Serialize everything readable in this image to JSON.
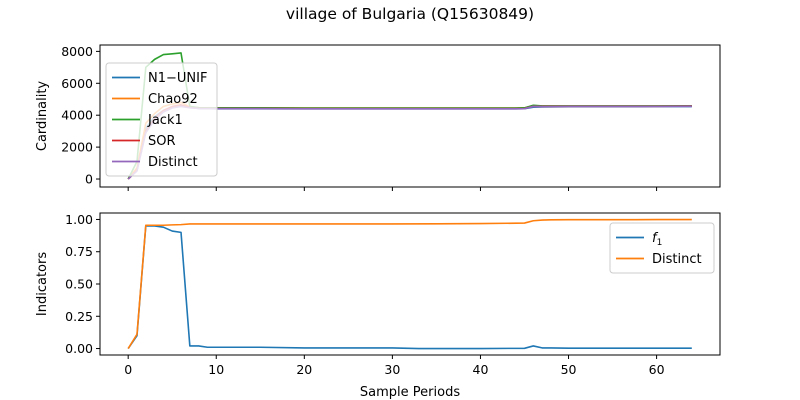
{
  "figure": {
    "title": "village of Bulgaria (Q15630849)"
  },
  "chart_data": [
    {
      "type": "line",
      "ylabel": "Cardinality",
      "xlim": [
        -3.2,
        67.2
      ],
      "ylim": [
        -500,
        8400
      ],
      "yticks": [
        0,
        2000,
        4000,
        6000,
        8000
      ],
      "xticks": [
        0,
        10,
        20,
        30,
        40,
        50,
        60
      ],
      "show_xtick_labels": false,
      "grid": false,
      "legend": {
        "placement": "upper-left"
      },
      "series": [
        {
          "name": "N1−UNIF",
          "color": "#1f77b4",
          "x": [
            0,
            1,
            2,
            3,
            4,
            5,
            6,
            7,
            8,
            10,
            15,
            20,
            25,
            30,
            35,
            40,
            44,
            45,
            46,
            47,
            50,
            55,
            60,
            64
          ],
          "y": [
            0,
            600,
            3200,
            3900,
            4300,
            4500,
            4600,
            4500,
            4420,
            4400,
            4400,
            4400,
            4400,
            4400,
            4400,
            4400,
            4400,
            4410,
            4500,
            4520,
            4530,
            4530,
            4540,
            4540
          ]
        },
        {
          "name": "Chao92",
          "color": "#ff7f0e",
          "x": [
            0,
            1,
            2,
            3,
            4,
            5,
            6,
            7,
            8,
            10,
            15,
            20,
            25,
            30,
            35,
            40,
            44,
            45,
            46,
            47,
            50,
            55,
            60,
            64
          ],
          "y": [
            0,
            700,
            3500,
            4100,
            4550,
            4700,
            4800,
            4520,
            4470,
            4460,
            4460,
            4450,
            4450,
            4450,
            4450,
            4450,
            4450,
            4460,
            4600,
            4580,
            4580,
            4580,
            4580,
            4590
          ]
        },
        {
          "name": "Jack1",
          "color": "#2ca02c",
          "x": [
            0,
            1,
            2,
            3,
            4,
            5,
            6,
            7,
            8,
            10,
            15,
            20,
            25,
            30,
            35,
            40,
            44,
            45,
            46,
            47,
            50,
            55,
            60,
            64
          ],
          "y": [
            0,
            1100,
            7000,
            7500,
            7800,
            7850,
            7900,
            4550,
            4470,
            4460,
            4460,
            4450,
            4450,
            4450,
            4450,
            4450,
            4450,
            4460,
            4620,
            4580,
            4580,
            4580,
            4580,
            4590
          ]
        },
        {
          "name": "SOR",
          "color": "#d62728",
          "x": [
            0,
            1,
            2,
            3,
            4,
            5,
            6,
            7,
            8,
            10,
            15,
            20,
            25,
            30,
            35,
            40,
            44,
            45,
            46,
            47,
            50,
            55,
            60,
            64
          ],
          "y": [
            0,
            550,
            3000,
            3800,
            4300,
            4550,
            4650,
            4480,
            4430,
            4420,
            4420,
            4410,
            4410,
            4410,
            4410,
            4410,
            4410,
            4420,
            4560,
            4550,
            4560,
            4560,
            4560,
            4570
          ]
        },
        {
          "name": "Distinct",
          "color": "#9467bd",
          "x": [
            0,
            1,
            2,
            3,
            4,
            5,
            6,
            7,
            8,
            10,
            15,
            20,
            25,
            30,
            35,
            40,
            44,
            45,
            46,
            47,
            50,
            55,
            60,
            64
          ],
          "y": [
            0,
            500,
            2900,
            3700,
            4200,
            4450,
            4550,
            4460,
            4420,
            4410,
            4410,
            4400,
            4400,
            4400,
            4400,
            4400,
            4400,
            4410,
            4550,
            4540,
            4550,
            4550,
            4550,
            4560
          ]
        }
      ]
    },
    {
      "type": "line",
      "ylabel": "Indicators",
      "xlabel": "Sample Periods",
      "xlim": [
        -3.2,
        67.2
      ],
      "ylim": [
        -0.05,
        1.05
      ],
      "yticks": [
        0.0,
        0.25,
        0.5,
        0.75,
        1.0
      ],
      "ytick_labels": [
        "0.00",
        "0.25",
        "0.50",
        "0.75",
        "1.00"
      ],
      "xticks": [
        0,
        10,
        20,
        30,
        40,
        50,
        60
      ],
      "xtick_labels": [
        "0",
        "10",
        "20",
        "30",
        "40",
        "50",
        "60"
      ],
      "grid": false,
      "legend": {
        "placement": "upper-right"
      },
      "series": [
        {
          "name": "f₁",
          "label_main": "f",
          "label_sub": "1",
          "color": "#1f77b4",
          "x": [
            0,
            1,
            2,
            3,
            4,
            5,
            6,
            7,
            8,
            9,
            10,
            15,
            20,
            25,
            30,
            33,
            35,
            40,
            45,
            46,
            47,
            48,
            50,
            55,
            60,
            64
          ],
          "y": [
            0,
            0.1,
            0.95,
            0.95,
            0.94,
            0.91,
            0.9,
            0.02,
            0.02,
            0.01,
            0.01,
            0.01,
            0.005,
            0.005,
            0.005,
            0.0,
            0.0,
            0.0,
            0.002,
            0.02,
            0.005,
            0.005,
            0.003,
            0.003,
            0.003,
            0.003
          ]
        },
        {
          "name": "Distinct",
          "color": "#ff7f0e",
          "x": [
            0,
            1,
            2,
            3,
            4,
            5,
            6,
            7,
            8,
            10,
            15,
            20,
            25,
            30,
            35,
            40,
            45,
            46,
            47,
            48,
            50,
            55,
            60,
            64
          ],
          "y": [
            0,
            0.11,
            0.955,
            0.955,
            0.955,
            0.958,
            0.96,
            0.965,
            0.965,
            0.965,
            0.965,
            0.965,
            0.965,
            0.965,
            0.966,
            0.968,
            0.972,
            0.99,
            0.995,
            0.997,
            0.998,
            0.998,
            0.999,
            0.999
          ]
        }
      ]
    }
  ]
}
